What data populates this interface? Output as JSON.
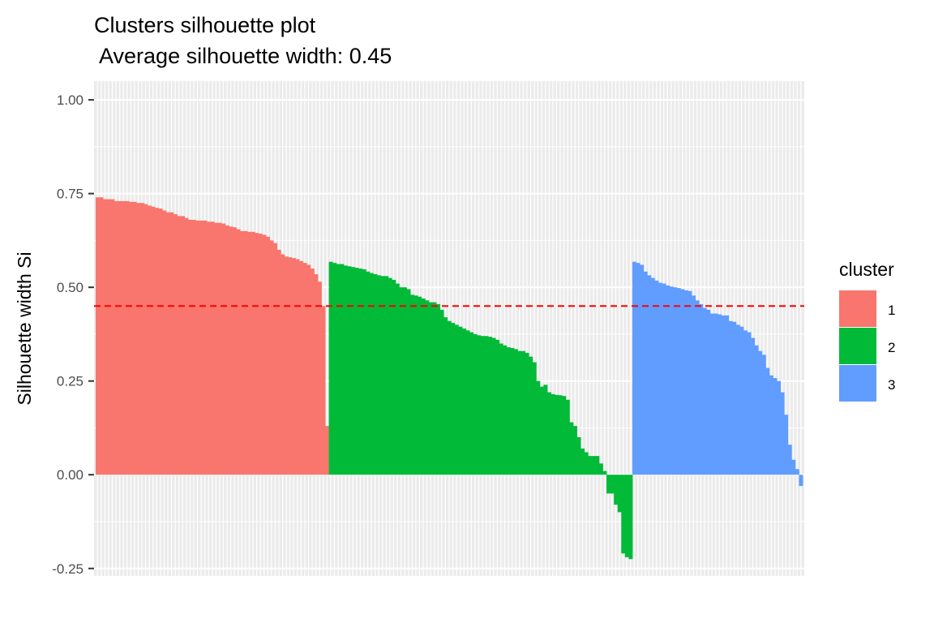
{
  "chart_data": {
    "type": "bar",
    "title": "Clusters silhouette plot",
    "subtitle": " Average silhouette width: 0.45",
    "xlabel": "",
    "ylabel": "Silhouette width Si",
    "ylim": [
      -0.27,
      1.05
    ],
    "y_ticks": [
      "-0.25",
      "0.00",
      "0.25",
      "0.50",
      "0.75",
      "1.00"
    ],
    "y_tick_values": [
      -0.25,
      0,
      0.25,
      0.5,
      0.75,
      1.0
    ],
    "average_silhouette_width": 0.45,
    "grid": true,
    "legend": {
      "title": "cluster",
      "position": "right",
      "entries": [
        {
          "label": "1",
          "color": "#F8766D"
        },
        {
          "label": "2",
          "color": "#00BA38"
        },
        {
          "label": "3",
          "color": "#619CFF"
        }
      ]
    },
    "series": [
      {
        "name": "1",
        "color": "#F8766D",
        "values": [
          0.74,
          0.74,
          0.735,
          0.735,
          0.735,
          0.73,
          0.73,
          0.73,
          0.73,
          0.728,
          0.728,
          0.725,
          0.725,
          0.722,
          0.718,
          0.715,
          0.712,
          0.71,
          0.705,
          0.7,
          0.7,
          0.695,
          0.69,
          0.69,
          0.685,
          0.68,
          0.68,
          0.678,
          0.678,
          0.678,
          0.675,
          0.675,
          0.672,
          0.672,
          0.67,
          0.665,
          0.662,
          0.66,
          0.655,
          0.65,
          0.65,
          0.648,
          0.648,
          0.645,
          0.643,
          0.64,
          0.635,
          0.625,
          0.618,
          0.6,
          0.588,
          0.582,
          0.58,
          0.578,
          0.575,
          0.57,
          0.565,
          0.56,
          0.55,
          0.535,
          0.515,
          0.45,
          0.13
        ]
      },
      {
        "name": "2",
        "color": "#00BA38",
        "values": [
          0.568,
          0.565,
          0.562,
          0.562,
          0.558,
          0.556,
          0.554,
          0.552,
          0.55,
          0.548,
          0.542,
          0.538,
          0.535,
          0.532,
          0.53,
          0.53,
          0.525,
          0.52,
          0.51,
          0.5,
          0.5,
          0.495,
          0.48,
          0.478,
          0.475,
          0.47,
          0.465,
          0.46,
          0.46,
          0.455,
          0.44,
          0.42,
          0.41,
          0.405,
          0.4,
          0.395,
          0.39,
          0.385,
          0.38,
          0.375,
          0.372,
          0.37,
          0.37,
          0.368,
          0.365,
          0.36,
          0.35,
          0.345,
          0.34,
          0.338,
          0.335,
          0.33,
          0.33,
          0.325,
          0.315,
          0.3,
          0.25,
          0.235,
          0.24,
          0.22,
          0.215,
          0.213,
          0.212,
          0.21,
          0.2,
          0.14,
          0.13,
          0.1,
          0.07,
          0.06,
          0.05,
          0.05,
          0.05,
          0.03,
          0.01,
          -0.05,
          -0.05,
          -0.08,
          -0.1,
          -0.21,
          -0.22,
          -0.225
        ]
      },
      {
        "name": "3",
        "color": "#619CFF",
        "values": [
          0.568,
          0.565,
          0.56,
          0.542,
          0.532,
          0.525,
          0.518,
          0.512,
          0.51,
          0.505,
          0.502,
          0.5,
          0.498,
          0.495,
          0.492,
          0.49,
          0.478,
          0.465,
          0.455,
          0.445,
          0.44,
          0.43,
          0.43,
          0.428,
          0.425,
          0.425,
          0.41,
          0.408,
          0.4,
          0.395,
          0.385,
          0.38,
          0.365,
          0.345,
          0.33,
          0.32,
          0.285,
          0.265,
          0.258,
          0.25,
          0.22,
          0.16,
          0.08,
          0.04,
          0.015,
          -0.03
        ]
      }
    ]
  }
}
